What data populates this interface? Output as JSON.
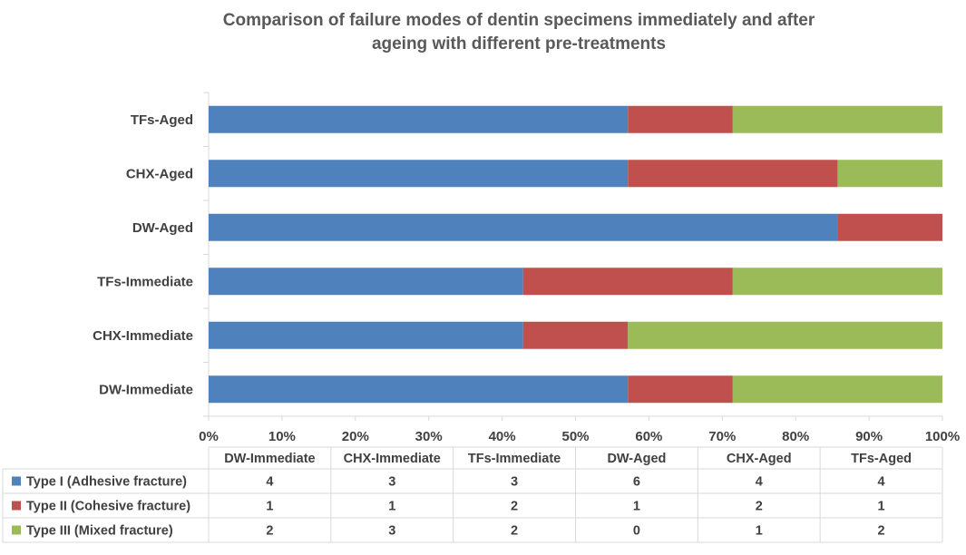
{
  "chart_data": {
    "type": "bar",
    "orientation": "horizontal",
    "stacking": "percent",
    "title": "Comparison of failure modes of dentin specimens immediately and after ageing with different pre-treatments",
    "title_lines": [
      "Comparison of failure modes of dentin specimens immediately and after",
      "ageing with different pre-treatments"
    ],
    "categories": [
      "DW-Immediate",
      "CHX-Immediate",
      "TFs-Immediate",
      "DW-Aged",
      "CHX-Aged",
      "TFs-Aged"
    ],
    "series": [
      {
        "name": "Type I (Adhesive fracture)",
        "color": "#4F81BD",
        "values": [
          4,
          3,
          3,
          6,
          4,
          4
        ]
      },
      {
        "name": "Type II (Cohesive fracture)",
        "color": "#C0504D",
        "values": [
          1,
          1,
          2,
          1,
          2,
          1
        ]
      },
      {
        "name": "Type III (Mixed fracture)",
        "color": "#9BBB59",
        "values": [
          2,
          3,
          2,
          0,
          1,
          2
        ]
      }
    ],
    "x_ticks": [
      "0%",
      "10%",
      "20%",
      "30%",
      "40%",
      "50%",
      "60%",
      "70%",
      "80%",
      "90%",
      "100%"
    ],
    "xlim": [
      0,
      100
    ],
    "grid": false,
    "legend": "data table below chart"
  }
}
